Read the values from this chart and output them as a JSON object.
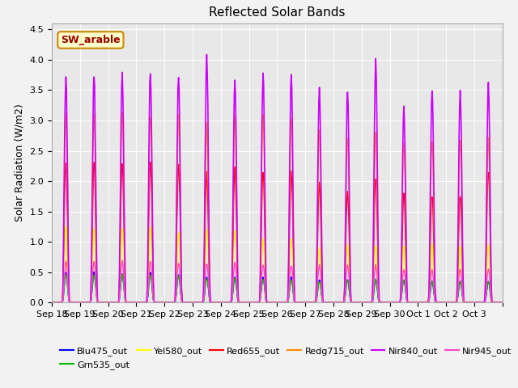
{
  "title": "Reflected Solar Bands",
  "ylabel": "Solar Radiation (W/m2)",
  "ylim": [
    0,
    4.6
  ],
  "yticks": [
    0.0,
    0.5,
    1.0,
    1.5,
    2.0,
    2.5,
    3.0,
    3.5,
    4.0,
    4.5
  ],
  "fig_bg": "#f2f2f2",
  "ax_bg": "#e8e8e8",
  "series_colors": {
    "Blu475_out": "#0000ff",
    "Grn535_out": "#00bb00",
    "Yel580_out": "#ffff00",
    "Red655_out": "#ff0000",
    "Redg715_out": "#ff8800",
    "Nir840_out": "#cc00ff",
    "Nir945_out": "#ff44cc"
  },
  "annotation_text": "SW_arable",
  "annotation_color": "#990000",
  "annotation_bg": "#ffffcc",
  "annotation_border": "#cc8800",
  "num_days": 16,
  "xtick_labels": [
    "Sep 18",
    "Sep 19",
    "Sep 20",
    "Sep 21",
    "Sep 22",
    "Sep 23",
    "Sep 24",
    "Sep 25",
    "Sep 26",
    "Sep 27",
    "Sep 28",
    "Sep 29",
    "Sep 30",
    "Oct 1",
    "Oct 2",
    "Oct 3"
  ],
  "day_peaks": {
    "Nir840_out": [
      3.75,
      3.72,
      3.75,
      3.78,
      3.75,
      4.1,
      3.62,
      3.75,
      3.75,
      3.55,
      3.5,
      3.95,
      3.2,
      3.5,
      3.48,
      3.6
    ],
    "Redg715_out": [
      3.1,
      3.1,
      3.1,
      3.1,
      3.1,
      2.95,
      3.08,
      3.1,
      3.1,
      2.85,
      2.75,
      2.8,
      2.65,
      2.65,
      2.7,
      2.75
    ],
    "Red655_out": [
      2.3,
      2.3,
      2.28,
      2.3,
      2.3,
      2.1,
      2.2,
      2.15,
      2.15,
      1.95,
      1.85,
      2.05,
      1.8,
      1.8,
      1.8,
      2.2
    ],
    "Yel580_out": [
      1.25,
      1.22,
      1.25,
      1.25,
      1.15,
      1.2,
      1.2,
      1.05,
      1.05,
      0.9,
      0.95,
      0.95,
      0.95,
      0.95,
      0.95,
      0.95
    ],
    "Grn535_out": [
      0.45,
      0.45,
      0.45,
      0.45,
      0.45,
      0.4,
      0.4,
      0.38,
      0.38,
      0.35,
      0.38,
      0.38,
      0.38,
      0.35,
      0.35,
      0.35
    ],
    "Blu475_out": [
      0.5,
      0.5,
      0.48,
      0.5,
      0.45,
      0.42,
      0.42,
      0.42,
      0.42,
      0.38,
      0.38,
      0.38,
      0.38,
      0.35,
      0.35,
      0.35
    ],
    "Nir945_out": [
      0.68,
      0.68,
      0.68,
      0.68,
      0.65,
      0.65,
      0.65,
      0.62,
      0.62,
      0.62,
      0.62,
      0.62,
      0.55,
      0.55,
      0.55,
      0.55
    ]
  }
}
